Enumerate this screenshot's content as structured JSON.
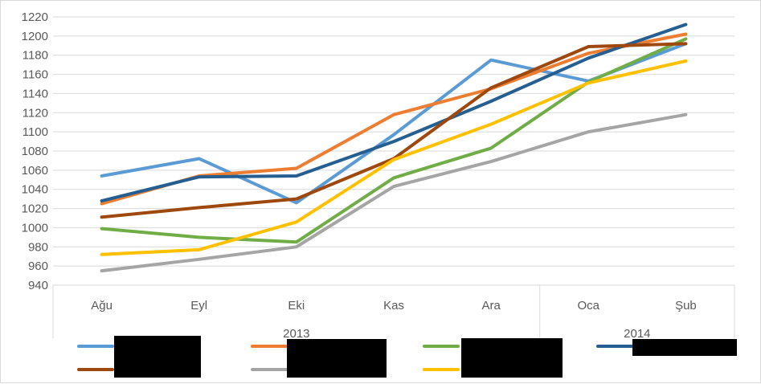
{
  "chart_data": {
    "type": "line",
    "title": "",
    "xlabel": "",
    "ylabel": "",
    "ylim": [
      940,
      1220
    ],
    "ytick_step": 20,
    "grid": true,
    "legend_position": "bottom",
    "categories": [
      "Ağu",
      "Eyl",
      "Eki",
      "Kas",
      "Ara",
      "Oca",
      "Şub"
    ],
    "category_groups": [
      {
        "label": "2013",
        "span": 5
      },
      {
        "label": "2014",
        "span": 2
      }
    ],
    "series": [
      {
        "color": "#5B9BD5",
        "values": [
          1054,
          1072,
          1026,
          1097,
          1175,
          1153,
          1192
        ]
      },
      {
        "color": "#ED7D31",
        "values": [
          1025,
          1054,
          1062,
          1118,
          1145,
          1182,
          1202
        ]
      },
      {
        "color": "#70AD47",
        "values": [
          999,
          990,
          985,
          1052,
          1083,
          1152,
          1197
        ]
      },
      {
        "color": "#255E91",
        "values": [
          1028,
          1053,
          1054,
          1090,
          1132,
          1177,
          1212
        ]
      },
      {
        "color": "#9E480E",
        "values": [
          1011,
          1021,
          1030,
          1072,
          1146,
          1189,
          1192
        ]
      },
      {
        "color": "#A5A5A5",
        "values": [
          955,
          967,
          980,
          1043,
          1069,
          1100,
          1118
        ]
      },
      {
        "color": "#FFC000",
        "values": [
          972,
          977,
          1006,
          1071,
          1108,
          1151,
          1174
        ]
      }
    ]
  }
}
